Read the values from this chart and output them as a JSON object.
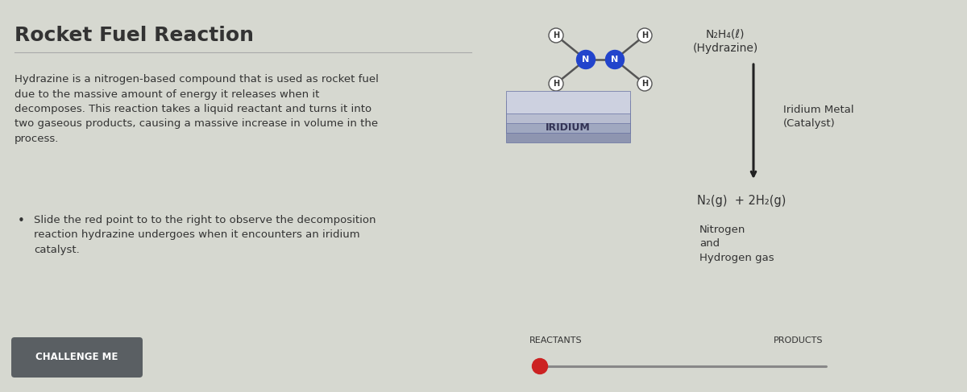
{
  "bg_color": "#d6d8d0",
  "title": "Rocket Fuel Reaction",
  "title_fontsize": 18,
  "title_fontweight": "bold",
  "body_text": "Hydrazine is a nitrogen-based compound that is used as rocket fuel\ndue to the massive amount of energy it releases when it\ndecomposes. This reaction takes a liquid reactant and turns it into\ntwo gaseous products, causing a massive increase in volume in the\nprocess.",
  "bullet_text": "Slide the red point to to the right to observe the decomposition\nreaction hydrazine undergoes when it encounters an iridium\ncatalyst.",
  "button_text": "CHALLENGE ME",
  "button_color": "#5a5f63",
  "button_text_color": "#ffffff",
  "hydrazine_label": "N₂H₄(ℓ)\n(Hydrazine)",
  "iridium_label": "Iridium Metal\n(Catalyst)",
  "products_formula": "N₂(g)  + 2H₂(g)",
  "products_label": "Nitrogen\nand\nHydrogen gas",
  "reactants_label": "REACTANTS",
  "products_slider_label": "PRODUCTS",
  "slider_line_color": "#888888",
  "slider_dot_color": "#cc2222",
  "divider_color": "#aaaaaa",
  "arrow_color": "#222222",
  "h_color": "#ffffff",
  "n_color": "#2244cc",
  "bond_color": "#555555",
  "iridium_color_top": "#c8ccd8",
  "iridium_color_mid": "#9099b0",
  "iridium_color_bot": "#7a80a0",
  "text_color": "#333333",
  "slab_layers": [
    "#8e95b0",
    "#a0a8c0",
    "#b8bdd0",
    "#cdd1e0"
  ]
}
